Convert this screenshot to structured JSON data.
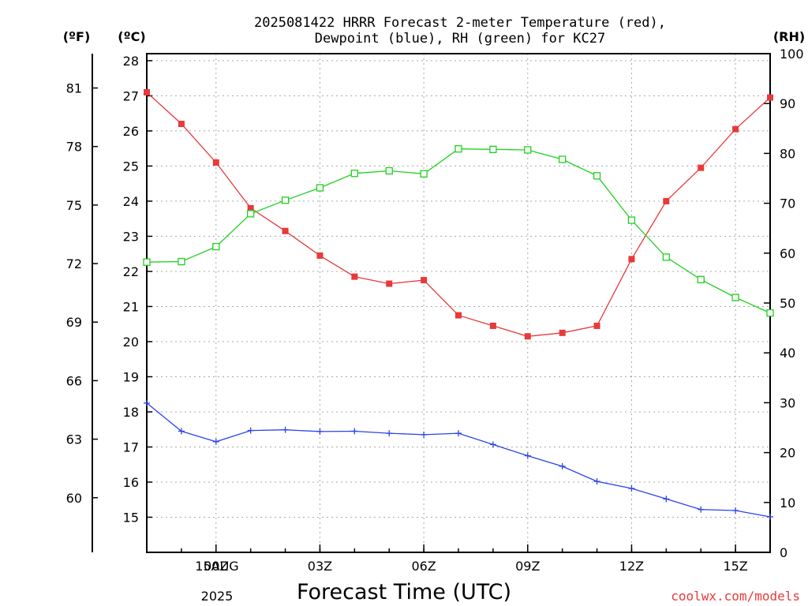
{
  "chart_data": {
    "type": "line",
    "title_line1": "2025081422 HRRR Forecast 2-meter Temperature (red),",
    "title_line2": "Dewpoint (blue), RH (green) for KC27",
    "unit_f": "(ºF)",
    "unit_c": "(ºC)",
    "unit_rh": "(RH)",
    "xlabel": "Forecast Time (UTC)",
    "date_line1": "15AUG",
    "date_line2": "2025",
    "credit": "coolwx.com/models",
    "x_hours": [
      -2,
      -1,
      0,
      1,
      2,
      3,
      4,
      5,
      6,
      7,
      8,
      9,
      10,
      11,
      12,
      13,
      14,
      15,
      16
    ],
    "x_ticks": [
      {
        "hour": 0,
        "label": "00Z"
      },
      {
        "hour": 3,
        "label": "03Z"
      },
      {
        "hour": 6,
        "label": "06Z"
      },
      {
        "hour": 9,
        "label": "09Z"
      },
      {
        "hour": 12,
        "label": "12Z"
      },
      {
        "hour": 15,
        "label": "15Z"
      }
    ],
    "celsius_ylim": [
      14,
      28.2
    ],
    "celsius_ticks": [
      15,
      16,
      17,
      18,
      19,
      20,
      21,
      22,
      23,
      24,
      25,
      26,
      27,
      28
    ],
    "fahrenheit_ticks": [
      60,
      63,
      66,
      69,
      72,
      75,
      78,
      81
    ],
    "rh_ylim": [
      0,
      100
    ],
    "rh_ticks": [
      0,
      10,
      20,
      30,
      40,
      50,
      60,
      70,
      80,
      90,
      100
    ],
    "grid": true,
    "series": [
      {
        "name": "Temperature",
        "color": "#e8393b",
        "axis": "celsius",
        "marker": "filled-square",
        "values": [
          27.1,
          26.2,
          25.1,
          23.8,
          23.15,
          22.45,
          21.85,
          21.65,
          21.75,
          20.75,
          20.45,
          20.15,
          20.25,
          20.45,
          22.35,
          24.0,
          24.95,
          26.05,
          26.95
        ]
      },
      {
        "name": "Dewpoint",
        "color": "#2b45e8",
        "axis": "celsius",
        "marker": "plus",
        "values": [
          18.25,
          17.45,
          17.15,
          17.47,
          17.49,
          17.44,
          17.45,
          17.39,
          17.35,
          17.39,
          17.07,
          16.75,
          16.45,
          16.02,
          15.82,
          15.52,
          15.22,
          15.19,
          15.01
        ]
      },
      {
        "name": "RH",
        "color": "#20d020",
        "axis": "rh",
        "marker": "open-square",
        "values": [
          58.2,
          58.3,
          61.3,
          67.9,
          70.6,
          73.1,
          76.0,
          76.5,
          75.9,
          80.9,
          80.8,
          80.7,
          78.8,
          75.5,
          66.6,
          59.2,
          54.7,
          51.1,
          48.0
        ]
      }
    ]
  }
}
